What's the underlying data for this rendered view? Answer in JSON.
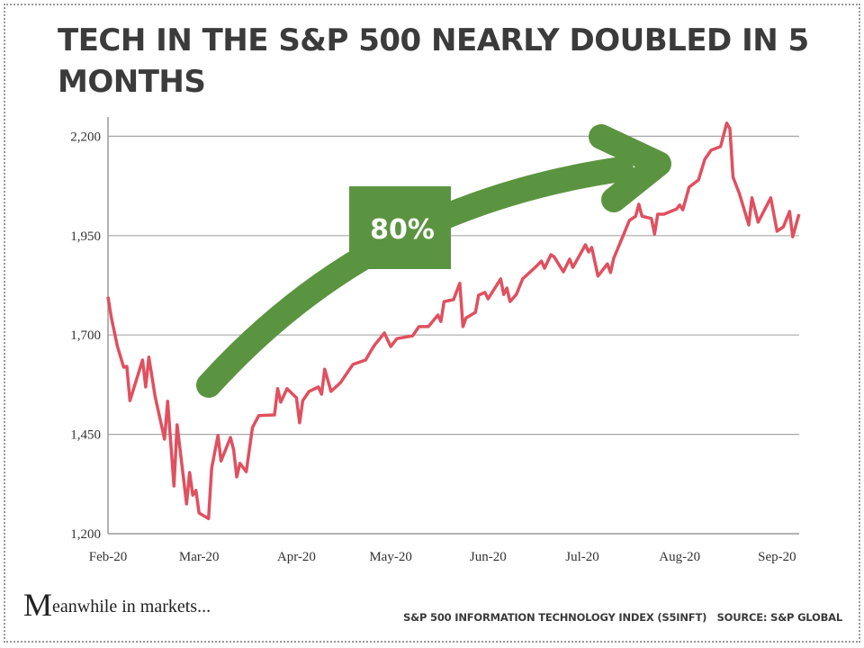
{
  "title": "TECH IN THE S&P 500 NEARLY DOUBLED IN 5 MONTHS",
  "annotation": {
    "label": "80%",
    "color": "#5b9441"
  },
  "branding": {
    "logo_initial": "M",
    "logo_rest": "eanwhile in markets..."
  },
  "source_note": "S&P 500 INFORMATION TECHNOLOGY INDEX (S5INFT)   SOURCE: S&P GLOBAL",
  "chart_data": {
    "type": "line",
    "title": "TECH IN THE S&P 500 NEARLY DOUBLED IN 5 MONTHS",
    "xlabel": "",
    "ylabel": "",
    "ylim": [
      1200,
      2250
    ],
    "yticks": [
      1200,
      1450,
      1700,
      1950,
      2200
    ],
    "ytick_labels": [
      "1,200",
      "1,450",
      "1,700",
      "1,950",
      "2,200"
    ],
    "xtick_labels": [
      "Feb-20",
      "Mar-20",
      "Apr-20",
      "May-20",
      "Jun-20",
      "Jul-20",
      "Aug-20",
      "Sep-20"
    ],
    "xtick_dates": [
      "2020-02-01",
      "2020-03-01",
      "2020-04-01",
      "2020-05-01",
      "2020-06-01",
      "2020-07-01",
      "2020-08-01",
      "2020-09-01"
    ],
    "grid": "horizontal",
    "line_color": "#e0505f",
    "series": [
      {
        "points": [
          [
            "2020-02-01",
            1796
          ],
          [
            "2020-02-02",
            1746
          ],
          [
            "2020-02-04",
            1671
          ],
          [
            "2020-02-06",
            1619
          ],
          [
            "2020-02-07",
            1621
          ],
          [
            "2020-02-08",
            1535
          ],
          [
            "2020-02-12",
            1637
          ],
          [
            "2020-02-13",
            1569
          ],
          [
            "2020-02-14",
            1644
          ],
          [
            "2020-02-16",
            1546
          ],
          [
            "2020-02-19",
            1438
          ],
          [
            "2020-02-20",
            1533
          ],
          [
            "2020-02-22",
            1320
          ],
          [
            "2020-02-23",
            1474
          ],
          [
            "2020-02-26",
            1275
          ],
          [
            "2020-02-27",
            1354
          ],
          [
            "2020-02-28",
            1297
          ],
          [
            "2020-02-29",
            1309
          ],
          [
            "2020-03-01",
            1252
          ],
          [
            "2020-03-04",
            1238
          ],
          [
            "2020-03-05",
            1365
          ],
          [
            "2020-03-07",
            1447
          ],
          [
            "2020-03-08",
            1383
          ],
          [
            "2020-03-11",
            1442
          ],
          [
            "2020-03-12",
            1411
          ],
          [
            "2020-03-13",
            1343
          ],
          [
            "2020-03-14",
            1377
          ],
          [
            "2020-03-16",
            1356
          ],
          [
            "2020-03-18",
            1467
          ],
          [
            "2020-03-20",
            1497
          ],
          [
            "2020-03-25",
            1499
          ],
          [
            "2020-03-26",
            1565
          ],
          [
            "2020-03-27",
            1531
          ],
          [
            "2020-03-29",
            1565
          ],
          [
            "2020-04-01",
            1542
          ],
          [
            "2020-04-02",
            1479
          ],
          [
            "2020-04-03",
            1535
          ],
          [
            "2020-04-05",
            1558
          ],
          [
            "2020-04-08",
            1569
          ],
          [
            "2020-04-09",
            1551
          ],
          [
            "2020-04-10",
            1614
          ],
          [
            "2020-04-12",
            1558
          ],
          [
            "2020-04-15",
            1580
          ],
          [
            "2020-04-19",
            1626
          ],
          [
            "2020-04-23",
            1637
          ],
          [
            "2020-04-25",
            1664
          ],
          [
            "2020-04-26",
            1676
          ],
          [
            "2020-04-29",
            1705
          ],
          [
            "2020-05-01",
            1671
          ],
          [
            "2020-05-03",
            1691
          ],
          [
            "2020-05-08",
            1698
          ],
          [
            "2020-05-10",
            1721
          ],
          [
            "2020-05-13",
            1721
          ],
          [
            "2020-05-16",
            1750
          ],
          [
            "2020-05-17",
            1734
          ],
          [
            "2020-05-18",
            1784
          ],
          [
            "2020-05-21",
            1789
          ],
          [
            "2020-05-23",
            1830
          ],
          [
            "2020-05-24",
            1721
          ],
          [
            "2020-05-25",
            1743
          ],
          [
            "2020-05-28",
            1757
          ],
          [
            "2020-05-29",
            1800
          ],
          [
            "2020-05-31",
            1807
          ],
          [
            "2020-06-01",
            1791
          ],
          [
            "2020-06-05",
            1841
          ],
          [
            "2020-06-06",
            1802
          ],
          [
            "2020-06-07",
            1818
          ],
          [
            "2020-06-08",
            1784
          ],
          [
            "2020-06-10",
            1802
          ],
          [
            "2020-06-12",
            1841
          ],
          [
            "2020-06-16",
            1870
          ],
          [
            "2020-06-18",
            1886
          ],
          [
            "2020-06-19",
            1868
          ],
          [
            "2020-06-21",
            1902
          ],
          [
            "2020-06-22",
            1897
          ],
          [
            "2020-06-25",
            1859
          ],
          [
            "2020-06-27",
            1891
          ],
          [
            "2020-06-28",
            1870
          ],
          [
            "2020-07-02",
            1927
          ],
          [
            "2020-07-03",
            1909
          ],
          [
            "2020-07-04",
            1920
          ],
          [
            "2020-07-06",
            1848
          ],
          [
            "2020-07-09",
            1879
          ],
          [
            "2020-07-10",
            1857
          ],
          [
            "2020-07-11",
            1893
          ],
          [
            "2020-07-14",
            1950
          ],
          [
            "2020-07-16",
            1988
          ],
          [
            "2020-07-18",
            1999
          ],
          [
            "2020-07-19",
            2029
          ],
          [
            "2020-07-20",
            1999
          ],
          [
            "2020-07-23",
            1993
          ],
          [
            "2020-07-24",
            1954
          ],
          [
            "2020-07-25",
            2004
          ],
          [
            "2020-07-27",
            2004
          ],
          [
            "2020-07-31",
            2017
          ],
          [
            "2020-08-01",
            2027
          ],
          [
            "2020-08-02",
            2015
          ],
          [
            "2020-08-04",
            2072
          ],
          [
            "2020-08-07",
            2090
          ],
          [
            "2020-08-09",
            2142
          ],
          [
            "2020-08-11",
            2165
          ],
          [
            "2020-08-14",
            2174
          ],
          [
            "2020-08-15",
            2203
          ],
          [
            "2020-08-16",
            2233
          ],
          [
            "2020-08-17",
            2219
          ],
          [
            "2020-08-18",
            2097
          ],
          [
            "2020-08-20",
            2056
          ],
          [
            "2020-08-23",
            1977
          ],
          [
            "2020-08-24",
            2045
          ],
          [
            "2020-08-26",
            1984
          ],
          [
            "2020-08-30",
            2045
          ],
          [
            "2020-09-01",
            1961
          ],
          [
            "2020-09-03",
            1972
          ],
          [
            "2020-09-05",
            2011
          ],
          [
            "2020-09-06",
            1947
          ],
          [
            "2020-09-08",
            2004
          ]
        ]
      }
    ]
  }
}
